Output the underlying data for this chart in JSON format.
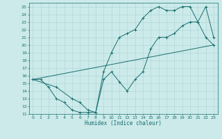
{
  "xlabel": "Humidex (Indice chaleur)",
  "bg_color": "#cceaea",
  "grid_color": "#aad4d4",
  "line_color": "#1a6e6e",
  "xlim": [
    -0.5,
    23.5
  ],
  "ylim": [
    11,
    25.5
  ],
  "xticks": [
    0,
    1,
    2,
    3,
    4,
    5,
    6,
    7,
    8,
    9,
    10,
    11,
    12,
    13,
    14,
    15,
    16,
    17,
    18,
    19,
    20,
    21,
    22,
    23
  ],
  "yticks": [
    11,
    12,
    13,
    14,
    15,
    16,
    17,
    18,
    19,
    20,
    21,
    22,
    23,
    24,
    25
  ],
  "line1_x": [
    0,
    1,
    2,
    3,
    4,
    5,
    6,
    7,
    8,
    9,
    10,
    11,
    12,
    13,
    14,
    15,
    16,
    17,
    18,
    19,
    20,
    21,
    22,
    23
  ],
  "line1_y": [
    15.5,
    15.5,
    14.5,
    13.0,
    12.5,
    11.5,
    11.2,
    11.2,
    11.2,
    15.5,
    16.5,
    15.2,
    14.0,
    15.5,
    16.5,
    19.5,
    21.0,
    21.0,
    21.5,
    22.5,
    23.0,
    23.0,
    21.0,
    20.0
  ],
  "line2_x": [
    0,
    3,
    5,
    6,
    7,
    8,
    9,
    10,
    11,
    12,
    13,
    14,
    15,
    16,
    17,
    18,
    19,
    20,
    21,
    22,
    23
  ],
  "line2_y": [
    15.5,
    14.5,
    13.0,
    12.5,
    11.5,
    11.2,
    16.5,
    19.0,
    21.0,
    21.5,
    22.0,
    23.5,
    24.5,
    25.0,
    24.5,
    24.5,
    25.0,
    25.0,
    23.0,
    25.0,
    21.0
  ],
  "line3_x": [
    0,
    23
  ],
  "line3_y": [
    15.5,
    20.0
  ]
}
